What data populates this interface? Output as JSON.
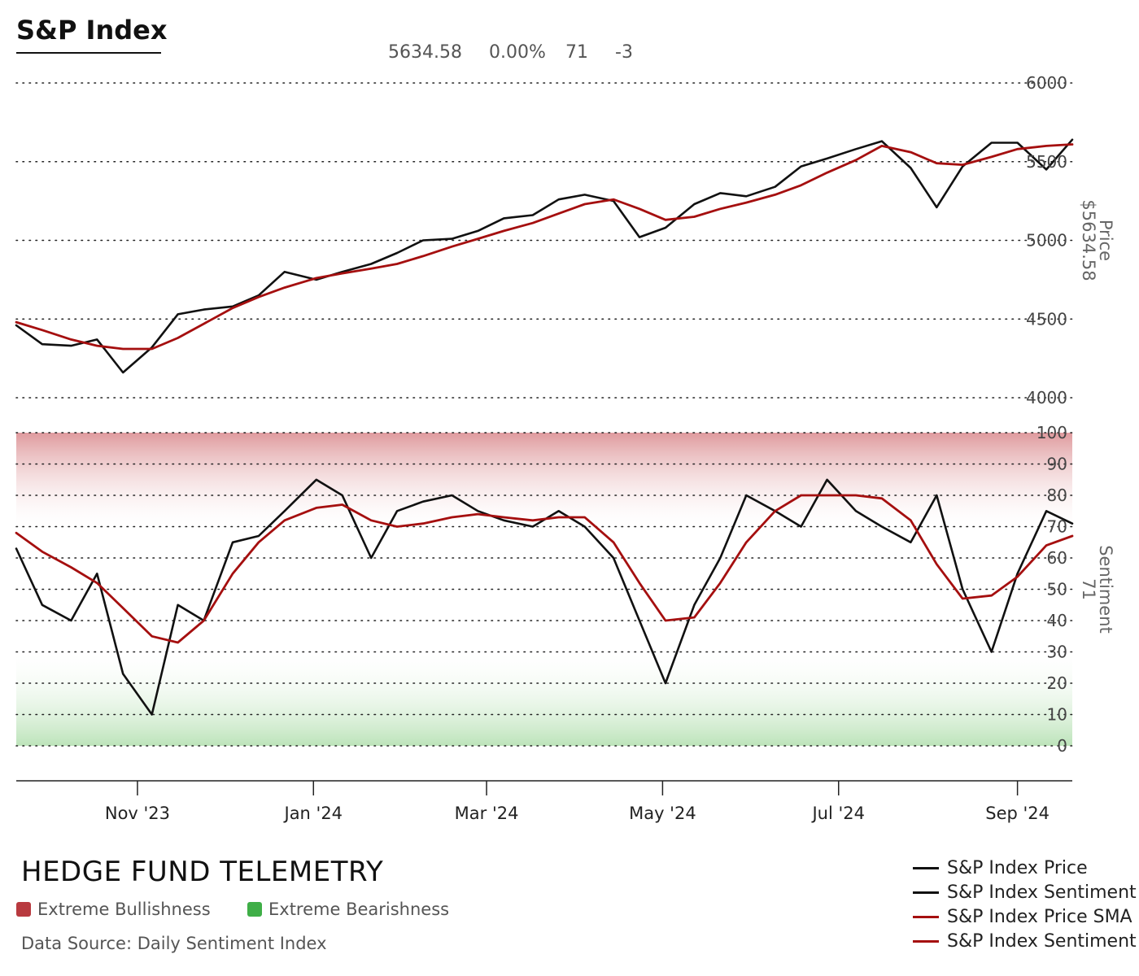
{
  "header": {
    "title": "S&P Index",
    "stats": [
      "5634.58",
      "0.00%",
      "71",
      "-3"
    ]
  },
  "colors": {
    "price_line": "#111111",
    "sma_line": "#a50f0f",
    "bull_zone": "#d9888c",
    "bear_zone": "#b9e2b6",
    "bull_swatch": "#b83a3f",
    "bear_swatch": "#3fae47"
  },
  "footer": {
    "brand": "HEDGE FUND TELEMETRY",
    "zones": [
      {
        "label": "Extreme Bullishness",
        "color": "#b83a3f"
      },
      {
        "label": "Extreme Bearishness",
        "color": "#3fae47"
      }
    ],
    "source": "Data Source: Daily Sentiment Index"
  },
  "legend": [
    {
      "label": "S&P Index Price",
      "color": "#111111"
    },
    {
      "label": "S&P Index Sentiment",
      "color": "#111111"
    },
    {
      "label": "S&P Index Price SMA",
      "color": "#a50f0f"
    },
    {
      "label": "S&P Index Sentiment SMA",
      "color": "#a50f0f"
    }
  ],
  "chart_data": [
    {
      "type": "line",
      "title": "S&P Index",
      "ylabel": "Price",
      "ylabel_value": "$5634.58",
      "ylim": [
        4000,
        6000
      ],
      "yticks": [
        4000,
        4500,
        5000,
        5500,
        6000
      ],
      "grid": true,
      "x": [
        "2023-09-20",
        "2023-09-29",
        "2023-10-09",
        "2023-10-18",
        "2023-10-27",
        "2023-11-06",
        "2023-11-15",
        "2023-11-24",
        "2023-12-04",
        "2023-12-13",
        "2023-12-22",
        "2024-01-02",
        "2024-01-11",
        "2024-01-21",
        "2024-01-30",
        "2024-02-08",
        "2024-02-18",
        "2024-02-27",
        "2024-03-07",
        "2024-03-17",
        "2024-03-26",
        "2024-04-04",
        "2024-04-14",
        "2024-04-23",
        "2024-05-02",
        "2024-05-12",
        "2024-05-21",
        "2024-05-30",
        "2024-06-09",
        "2024-06-18",
        "2024-06-27",
        "2024-07-07",
        "2024-07-16",
        "2024-07-26",
        "2024-08-04",
        "2024-08-13",
        "2024-08-23",
        "2024-09-01",
        "2024-09-11",
        "2024-09-20"
      ],
      "series": [
        {
          "name": "S&P Index Price",
          "values": [
            4460,
            4340,
            4330,
            4370,
            4160,
            4320,
            4530,
            4560,
            4580,
            4650,
            4800,
            4750,
            4800,
            4850,
            4920,
            5000,
            5010,
            5060,
            5140,
            5160,
            5260,
            5290,
            5250,
            5020,
            5080,
            5230,
            5300,
            5280,
            5340,
            5470,
            5520,
            5580,
            5630,
            5460,
            5210,
            5470,
            5620,
            5620,
            5450,
            5640
          ]
        },
        {
          "name": "S&P Index Price SMA",
          "values": [
            4480,
            4430,
            4370,
            4330,
            4310,
            4310,
            4380,
            4470,
            4570,
            4640,
            4700,
            4760,
            4790,
            4820,
            4850,
            4900,
            4960,
            5010,
            5060,
            5110,
            5170,
            5230,
            5260,
            5200,
            5130,
            5150,
            5200,
            5240,
            5290,
            5350,
            5430,
            5510,
            5600,
            5560,
            5490,
            5480,
            5530,
            5580,
            5600,
            5610
          ]
        }
      ]
    },
    {
      "type": "line",
      "ylabel": "Sentiment",
      "ylabel_value": "71",
      "ylim": [
        0,
        100
      ],
      "yticks": [
        0,
        10,
        20,
        30,
        40,
        50,
        60,
        70,
        80,
        90,
        100
      ],
      "grid": true,
      "zones": [
        {
          "name": "Extreme Bullishness",
          "from": 70,
          "to": 100
        },
        {
          "name": "Extreme Bearishness",
          "from": 0,
          "to": 30
        }
      ],
      "x": [
        "2023-09-20",
        "2023-09-29",
        "2023-10-09",
        "2023-10-18",
        "2023-10-27",
        "2023-11-06",
        "2023-11-15",
        "2023-11-24",
        "2023-12-04",
        "2023-12-13",
        "2023-12-22",
        "2024-01-02",
        "2024-01-11",
        "2024-01-21",
        "2024-01-30",
        "2024-02-08",
        "2024-02-18",
        "2024-02-27",
        "2024-03-07",
        "2024-03-17",
        "2024-03-26",
        "2024-04-04",
        "2024-04-14",
        "2024-04-23",
        "2024-05-02",
        "2024-05-12",
        "2024-05-21",
        "2024-05-30",
        "2024-06-09",
        "2024-06-18",
        "2024-06-27",
        "2024-07-07",
        "2024-07-16",
        "2024-07-26",
        "2024-08-04",
        "2024-08-13",
        "2024-08-23",
        "2024-09-01",
        "2024-09-11",
        "2024-09-20"
      ],
      "series": [
        {
          "name": "S&P Index Sentiment",
          "values": [
            63,
            45,
            40,
            55,
            23,
            10,
            45,
            40,
            65,
            67,
            75,
            85,
            80,
            60,
            75,
            78,
            80,
            75,
            72,
            70,
            75,
            70,
            60,
            40,
            20,
            45,
            60,
            80,
            75,
            70,
            85,
            75,
            70,
            65,
            80,
            50,
            30,
            55,
            75,
            71
          ]
        },
        {
          "name": "S&P Index Sentiment SMA",
          "values": [
            68,
            62,
            57,
            52,
            44,
            35,
            33,
            40,
            55,
            65,
            72,
            76,
            77,
            72,
            70,
            71,
            73,
            74,
            73,
            72,
            73,
            73,
            65,
            52,
            40,
            41,
            52,
            65,
            75,
            80,
            80,
            80,
            79,
            72,
            58,
            47,
            48,
            54,
            64,
            67
          ]
        }
      ]
    }
  ],
  "x_axis": {
    "labels": [
      "Nov '23",
      "Jan '24",
      "Mar '24",
      "May '24",
      "Jul '24",
      "Sep '24"
    ],
    "dates": [
      "2023-11-01",
      "2024-01-01",
      "2024-03-01",
      "2024-05-01",
      "2024-07-01",
      "2024-09-01"
    ]
  }
}
